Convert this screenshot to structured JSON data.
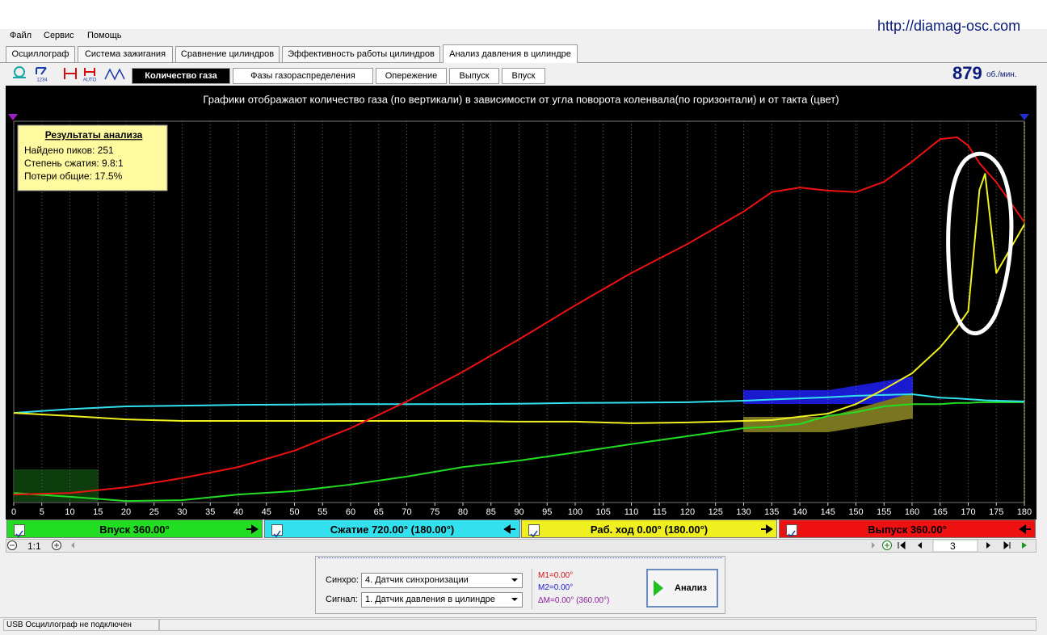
{
  "watermark": "http://diamag-osc.com",
  "menu": [
    "Файл",
    "Сервис",
    "Помощь"
  ],
  "tabs": [
    "Осциллограф",
    "Система зажигания",
    "Сравнение цилиндров",
    "Эффективность работы цилиндров",
    "Анализ давления в цилиндре"
  ],
  "toolbar_labels": [
    "1234",
    "AUTO"
  ],
  "subtabs": [
    "Количество газа",
    "Фазы газораспределения",
    "Опережение",
    "Выпуск",
    "Впуск"
  ],
  "rpm": {
    "value": "879",
    "unit": "об./мин."
  },
  "chart_data": {
    "type": "line",
    "title": "Графики отображают количество газа (по вертикали) в зависимости от угла поворота коленвала(по горизонтали) и от такта (цвет)",
    "annotation_title": "Результаты анализа",
    "annotations": [
      "Найдено пиков: 251",
      "Степень сжатия: 9.8:1",
      "Потери общие: 17.5%"
    ],
    "x": [
      0,
      10,
      20,
      30,
      40,
      50,
      60,
      70,
      80,
      90,
      100,
      110,
      120,
      130,
      135,
      140,
      145,
      150,
      155,
      160,
      165,
      168,
      170,
      172,
      173,
      175,
      180
    ],
    "xlim": [
      0,
      180
    ],
    "xticks": [
      0,
      5,
      10,
      15,
      20,
      25,
      30,
      35,
      40,
      45,
      50,
      55,
      60,
      65,
      70,
      75,
      80,
      85,
      90,
      95,
      100,
      105,
      110,
      115,
      120,
      125,
      130,
      135,
      140,
      145,
      150,
      155,
      160,
      165,
      170,
      175,
      180
    ],
    "ylim": [
      0,
      100
    ],
    "grid": true,
    "series": [
      {
        "name": "Впуск 360.00°",
        "color": "#22dd22",
        "values": [
          2.5,
          1.5,
          0.4,
          0.6,
          2.1,
          3.0,
          4.7,
          6.8,
          9.3,
          11.0,
          13.1,
          15.3,
          17.4,
          19.5,
          19.9,
          20.6,
          22.7,
          23.7,
          25.2,
          25.8,
          25.8,
          26.1,
          26.1,
          26.3,
          26.3,
          26.3,
          26.3
        ]
      },
      {
        "name": "Сжатие 720.00° (180.00°)",
        "color": "#33e0ee",
        "values": [
          23.5,
          24.5,
          25.2,
          25.4,
          25.6,
          25.7,
          25.8,
          25.8,
          25.8,
          25.9,
          26.1,
          26.2,
          26.3,
          26.7,
          27.0,
          27.3,
          27.6,
          28.0,
          28.2,
          28.4,
          27.5,
          27.3,
          27.1,
          26.9,
          26.8,
          26.7,
          26.5
        ]
      },
      {
        "name": "Раб. ход 0.00° (180.00°)",
        "color": "#f0f020",
        "values": [
          23.5,
          22.7,
          21.8,
          21.4,
          21.4,
          21.4,
          21.4,
          21.4,
          21.4,
          21.2,
          21.2,
          20.8,
          21.0,
          21.4,
          21.6,
          22.5,
          23.3,
          25.8,
          29.7,
          33.9,
          40.7,
          46.0,
          50.2,
          82.0,
          86.2,
          60.2,
          72.9
        ]
      },
      {
        "name": "Выпуск 360.00°",
        "color": "#ee1111",
        "values": [
          2.1,
          2.5,
          4.0,
          6.4,
          9.3,
          13.6,
          19.5,
          26.5,
          34.3,
          42.8,
          51.7,
          60.2,
          67.8,
          76.3,
          81.4,
          82.6,
          81.8,
          81.4,
          84.1,
          89.4,
          95.3,
          95.8,
          93.6,
          89.0,
          87.3,
          84.0,
          73.5
        ]
      }
    ]
  },
  "zoom": "1:1",
  "page": "3",
  "controls": {
    "sync_label": "Синхро:",
    "sync_value": "4. Датчик синхронизации",
    "signal_label": "Сигнал:",
    "signal_value": "1. Датчик давления в цилиндре",
    "markers": [
      "M1=0.00°",
      "M2=0.00°",
      "ΔM=0.00° (360.00°)"
    ],
    "button": "Анализ"
  },
  "status": "USB Осциллограф не подключен"
}
